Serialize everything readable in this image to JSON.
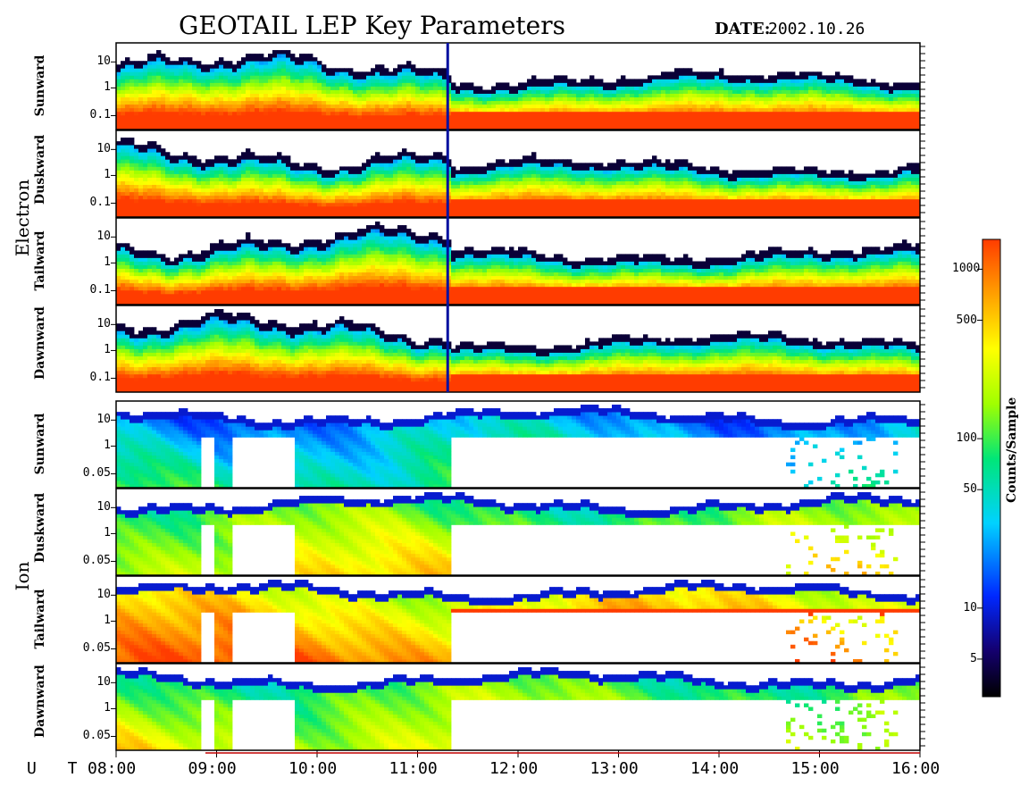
{
  "chart_data": {
    "type": "heatmap",
    "title": "GEOTAIL LEP Key Parameters",
    "date_label": "DATE:",
    "date": "2002.10.26",
    "time_axis": {
      "label": "U T",
      "start": "08:00",
      "end": "16:00",
      "ticks": [
        "08:00",
        "09:00",
        "10:00",
        "11:00",
        "12:00",
        "13:00",
        "14:00",
        "15:00",
        "16:00"
      ]
    },
    "groups": [
      {
        "name": "Electron",
        "energy_ticks": [
          "10",
          "1",
          "0.1"
        ],
        "energy_range_keV": [
          0.05,
          30
        ],
        "panels": [
          {
            "name": "Sunward"
          },
          {
            "name": "Duskward"
          },
          {
            "name": "Tailward"
          },
          {
            "name": "Dawnward"
          }
        ]
      },
      {
        "name": "Ion",
        "energy_ticks": [
          "10",
          "1",
          "0.05"
        ],
        "energy_range_keV": [
          0.05,
          30
        ],
        "panels": [
          {
            "name": "Sunward"
          },
          {
            "name": "Duskward"
          },
          {
            "name": "Tailward"
          },
          {
            "name": "Dawnward"
          }
        ]
      }
    ],
    "colorbar": {
      "label": "Counts/Sample",
      "scale": "log",
      "range": [
        3,
        1500
      ],
      "ticks": [
        "1000",
        "500",
        "100",
        "50",
        "10",
        "5"
      ],
      "colors": [
        "#000000",
        "#0000ff",
        "#00ffff",
        "#00ff00",
        "#ffff00",
        "#ff4000"
      ]
    },
    "data_gap_hour": 11.3
  }
}
